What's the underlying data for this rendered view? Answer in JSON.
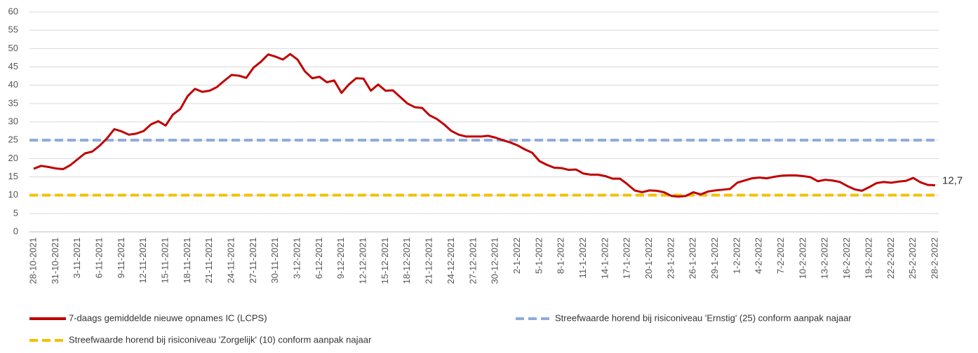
{
  "chart_data": {
    "type": "line",
    "categories": [
      "28-10-2021",
      null,
      null,
      "31-10-2021",
      null,
      null,
      "3-11-2021",
      null,
      null,
      "6-11-2021",
      null,
      null,
      "9-11-2021",
      null,
      null,
      "12-11-2021",
      null,
      null,
      "15-11-2021",
      null,
      null,
      "18-11-2021",
      null,
      null,
      "21-11-2021",
      null,
      null,
      "24-11-2021",
      null,
      null,
      "27-11-2021",
      null,
      null,
      "30-11-2021",
      null,
      null,
      "3-12-2021",
      null,
      null,
      "6-12-2021",
      null,
      null,
      "9-12-2021",
      null,
      null,
      "12-12-2021",
      null,
      null,
      "15-12-2021",
      null,
      null,
      "18-12-2021",
      null,
      null,
      "21-12-2021",
      null,
      null,
      "24-12-2021",
      null,
      null,
      "27-12-2021",
      null,
      null,
      "30-12-2021",
      null,
      null,
      "2-1-2022",
      null,
      null,
      "5-1-2022",
      null,
      null,
      "8-1-2022",
      null,
      null,
      "11-1-2022",
      null,
      null,
      "14-1-2022",
      null,
      null,
      "17-1-2022",
      null,
      null,
      "20-1-2022",
      null,
      null,
      "23-1-2022",
      null,
      null,
      "26-1-2022",
      null,
      null,
      "29-1-2022",
      null,
      null,
      "1-2-2022",
      null,
      null,
      "4-2-2022",
      null,
      null,
      "7-2-2022",
      null,
      null,
      "10-2-2022",
      null,
      null,
      "13-2-2022",
      null,
      null,
      "16-2-2022",
      null,
      null,
      "19-2-2022",
      null,
      null,
      "22-2-2022",
      null,
      null,
      "25-2-2022",
      null,
      null,
      "28-2-2022"
    ],
    "series": [
      {
        "name": "7-daags gemiddelde nieuwe opnames IC (LCPS)",
        "color": "#c00000",
        "values": [
          17.2,
          18,
          17.7,
          17.3,
          17.1,
          18.2,
          19.8,
          21.4,
          21.9,
          23.5,
          25.5,
          28,
          27.4,
          26.5,
          26.8,
          27.5,
          29.3,
          30.2,
          29,
          32,
          33.5,
          37,
          39,
          38.2,
          38.5,
          39.5,
          41.2,
          42.8,
          42.6,
          42,
          44.8,
          46.4,
          48.4,
          47.8,
          47,
          48.5,
          47,
          43.8,
          41.9,
          42.3,
          40.8,
          41.3,
          37.9,
          40.2,
          41.9,
          41.8,
          38.5,
          40.2,
          38.5,
          38.6,
          36.8,
          35,
          34,
          33.8,
          31.8,
          30.8,
          29.3,
          27.5,
          26.5,
          26,
          26,
          26,
          26.2,
          25.7,
          25,
          24.4,
          23.6,
          22.5,
          21.6,
          19.3,
          18.3,
          17.5,
          17.4,
          16.9,
          17,
          15.9,
          15.6,
          15.6,
          15.2,
          14.5,
          14.5,
          13,
          11.3,
          10.8,
          11.3,
          11.2,
          10.8,
          9.8,
          9.6,
          9.8,
          10.8,
          10.2,
          11,
          11.3,
          11.5,
          11.7,
          13.4,
          14,
          14.6,
          14.8,
          14.6,
          15,
          15.3,
          15.4,
          15.4,
          15.2,
          14.9,
          13.8,
          14.2,
          14,
          13.6,
          12.5,
          11.6,
          11.2,
          12.2,
          13.3,
          13.6,
          13.4,
          13.7,
          13.9,
          14.7,
          13.5,
          12.8,
          12.7
        ],
        "value_labels": [
          null,
          null,
          null,
          null,
          null,
          null,
          null,
          null,
          null,
          null,
          null,
          null,
          null,
          null,
          null,
          null,
          null,
          null,
          null,
          null,
          null,
          null,
          null,
          null,
          null,
          null,
          null,
          null,
          null,
          null,
          null,
          null,
          null,
          null,
          null,
          null,
          null,
          null,
          null,
          null,
          null,
          null,
          null,
          null,
          null,
          null,
          null,
          null,
          null,
          null,
          null,
          null,
          null,
          null,
          null,
          null,
          null,
          null,
          null,
          null,
          null,
          null,
          null,
          null,
          null,
          null,
          null,
          null,
          null,
          null,
          null,
          null,
          null,
          null,
          null,
          null,
          null,
          null,
          null,
          null,
          null,
          null,
          null,
          null,
          null,
          null,
          null,
          null,
          null,
          null,
          null,
          null,
          null,
          null,
          null,
          null,
          null,
          null,
          null,
          null,
          null,
          null,
          null,
          null,
          null,
          null,
          null,
          null,
          null,
          null,
          null,
          null,
          null,
          null,
          null,
          null,
          null,
          null,
          null,
          null,
          null,
          null,
          null,
          "12,7"
        ]
      }
    ],
    "reference_lines": [
      {
        "name": "Streefwaarde horend bij risiconiveau 'Ernstig' (25) conform aanpak najaar",
        "value": 25,
        "color": "#8faadc"
      },
      {
        "name": "Streefwaarde horend bij risiconiveau 'Zorgelijk' (10) conform aanpak najaar",
        "value": 10,
        "color": "#f2c200"
      }
    ],
    "ylim": [
      0,
      60
    ],
    "yticks": [
      0,
      5,
      10,
      15,
      20,
      25,
      30,
      35,
      40,
      45,
      50,
      55,
      60
    ],
    "grid": true
  }
}
